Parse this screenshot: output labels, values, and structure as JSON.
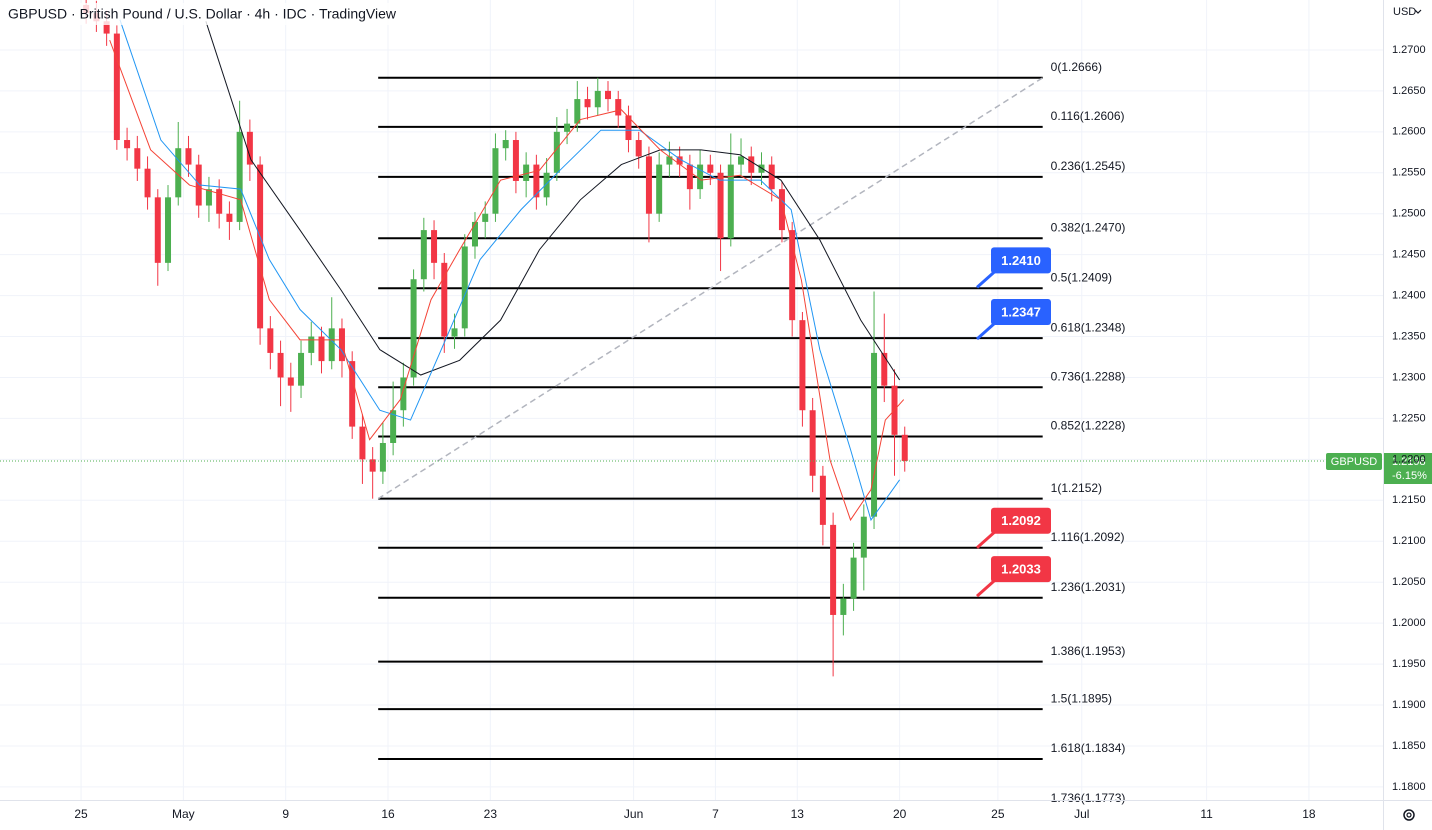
{
  "chart_data": {
    "type": "candlestick",
    "title": "GBPUSD · British Pound / U.S. Dollar · 4h · IDC · TradingView",
    "currency": "USD",
    "symbol": "GBPUSD",
    "last_price": 1.2198,
    "change": "-6.15%",
    "xlim": [
      -3.96,
      63.62
    ],
    "ylim": [
      1.1784,
      1.2761
    ],
    "grid": true,
    "xticks": [
      {
        "value": 0,
        "label": "25"
      },
      {
        "value": 5,
        "label": "May"
      },
      {
        "value": 10,
        "label": "9"
      },
      {
        "value": 15,
        "label": "16"
      },
      {
        "value": 20,
        "label": "23"
      },
      {
        "value": 27,
        "label": "Jun"
      },
      {
        "value": 31,
        "label": "7"
      },
      {
        "value": 35,
        "label": "13"
      },
      {
        "value": 40,
        "label": "20"
      },
      {
        "value": 44.8,
        "label": "25"
      },
      {
        "value": 48.9,
        "label": "Jul"
      },
      {
        "value": 55,
        "label": "11"
      },
      {
        "value": 60,
        "label": "18"
      }
    ],
    "yticks": [
      {
        "value": 1.27,
        "label": "1.2700"
      },
      {
        "value": 1.265,
        "label": "1.2650"
      },
      {
        "value": 1.26,
        "label": "1.2600"
      },
      {
        "value": 1.255,
        "label": "1.2550"
      },
      {
        "value": 1.25,
        "label": "1.2500"
      },
      {
        "value": 1.245,
        "label": "1.2450"
      },
      {
        "value": 1.24,
        "label": "1.2400"
      },
      {
        "value": 1.235,
        "label": "1.2350"
      },
      {
        "value": 1.23,
        "label": "1.2300"
      },
      {
        "value": 1.225,
        "label": "1.2250"
      },
      {
        "value": 1.22,
        "label": "1.2200"
      },
      {
        "value": 1.215,
        "label": "1.2150"
      },
      {
        "value": 1.21,
        "label": "1.2100"
      },
      {
        "value": 1.205,
        "label": "1.2050"
      },
      {
        "value": 1.2,
        "label": "1.2000"
      },
      {
        "value": 1.195,
        "label": "1.1950"
      },
      {
        "value": 1.19,
        "label": "1.1900"
      },
      {
        "value": 1.185,
        "label": "1.1850"
      },
      {
        "value": 1.18,
        "label": "1.1800"
      }
    ],
    "up_color": "#4caf50",
    "down_color": "#f23645",
    "x": [
      0.25,
      0.75,
      1.25,
      1.75,
      2.25,
      2.75,
      3.25,
      3.75,
      4.25,
      4.75,
      5.25,
      5.75,
      6.25,
      6.75,
      7.25,
      7.75,
      8.25,
      8.75,
      9.25,
      9.75,
      10.25,
      10.75,
      11.25,
      11.75,
      12.25,
      12.75,
      13.25,
      13.75,
      14.25,
      14.75,
      15.25,
      15.75,
      16.25,
      16.75,
      17.25,
      17.75,
      18.25,
      18.75,
      19.25,
      19.75,
      20.25,
      20.75,
      21.25,
      21.75,
      22.25,
      22.75,
      23.25,
      23.75,
      24.25,
      24.75,
      25.25,
      25.75,
      26.25,
      26.75,
      27.25,
      27.75,
      28.25,
      28.75,
      29.25,
      29.75,
      30.25,
      30.75,
      31.25,
      31.75,
      32.25,
      32.75,
      33.25,
      33.75,
      34.25,
      34.75,
      35.25,
      35.75,
      36.25,
      36.75,
      37.25,
      37.75,
      38.25,
      38.75,
      39.25,
      39.75,
      40.25
    ],
    "open": [
      1.2755,
      1.2745,
      1.2735,
      1.272,
      1.259,
      1.258,
      1.2555,
      1.252,
      1.244,
      1.252,
      1.258,
      1.256,
      1.251,
      1.253,
      1.25,
      1.249,
      1.26,
      1.256,
      1.236,
      1.233,
      1.23,
      1.229,
      1.233,
      1.235,
      1.232,
      1.236,
      1.232,
      1.224,
      1.22,
      1.2185,
      1.222,
      1.226,
      1.23,
      1.242,
      1.248,
      1.244,
      1.235,
      1.236,
      1.246,
      1.249,
      1.25,
      1.258,
      1.259,
      1.254,
      1.256,
      1.252,
      1.255,
      1.26,
      1.261,
      1.264,
      1.263,
      1.265,
      1.264,
      1.262,
      1.259,
      1.257,
      1.25,
      1.256,
      1.257,
      1.256,
      1.253,
      1.256,
      1.255,
      1.247,
      1.256,
      1.257,
      1.255,
      1.256,
      1.253,
      1.248,
      1.237,
      1.226,
      1.218,
      1.212,
      1.201,
      1.203,
      1.208,
      1.213,
      1.233,
      1.229,
      1.223
    ],
    "high": [
      1.2768,
      1.276,
      1.2748,
      1.273,
      1.2605,
      1.2595,
      1.257,
      1.253,
      1.2535,
      1.2612,
      1.2595,
      1.2572,
      1.2545,
      1.2542,
      1.2515,
      1.2638,
      1.2615,
      1.257,
      1.2375,
      1.2345,
      1.2318,
      1.2345,
      1.2368,
      1.2362,
      1.2398,
      1.2372,
      1.2332,
      1.2255,
      1.2215,
      1.2245,
      1.2295,
      1.2318,
      1.2432,
      1.2495,
      1.2492,
      1.2452,
      1.2378,
      1.2475,
      1.2502,
      1.2515,
      1.2598,
      1.2602,
      1.26,
      1.2575,
      1.2572,
      1.2568,
      1.2618,
      1.2628,
      1.2662,
      1.2655,
      1.2666,
      1.2662,
      1.265,
      1.2632,
      1.26,
      1.2582,
      1.2575,
      1.2588,
      1.2582,
      1.2572,
      1.2578,
      1.2572,
      1.256,
      1.2598,
      1.2592,
      1.2582,
      1.2575,
      1.257,
      1.254,
      1.249,
      1.238,
      1.2275,
      1.2192,
      1.2135,
      1.2048,
      1.2098,
      1.2145,
      1.2405,
      1.2378,
      1.231,
      1.224
    ],
    "low": [
      1.2732,
      1.2722,
      1.2705,
      1.2578,
      1.2565,
      1.254,
      1.2505,
      1.2412,
      1.243,
      1.251,
      1.2545,
      1.2495,
      1.249,
      1.2482,
      1.2468,
      1.248,
      1.254,
      1.234,
      1.231,
      1.2265,
      1.2258,
      1.2275,
      1.2315,
      1.2305,
      1.231,
      1.23,
      1.2225,
      1.217,
      1.2152,
      1.217,
      1.2205,
      1.224,
      1.229,
      1.2405,
      1.242,
      1.233,
      1.2335,
      1.235,
      1.2445,
      1.247,
      1.249,
      1.2565,
      1.2525,
      1.252,
      1.2505,
      1.251,
      1.254,
      1.2585,
      1.26,
      1.2615,
      1.262,
      1.2625,
      1.2605,
      1.2575,
      1.2555,
      1.2465,
      1.249,
      1.2545,
      1.2545,
      1.2505,
      1.2518,
      1.2535,
      1.243,
      1.246,
      1.2545,
      1.2535,
      1.2535,
      1.2515,
      1.2465,
      1.235,
      1.224,
      1.216,
      1.2095,
      1.1935,
      1.1985,
      1.2015,
      1.204,
      1.2115,
      1.227,
      1.218,
      1.2185
    ],
    "close": [
      1.2745,
      1.2735,
      1.272,
      1.259,
      1.258,
      1.2555,
      1.252,
      1.244,
      1.252,
      1.258,
      1.256,
      1.251,
      1.253,
      1.25,
      1.249,
      1.26,
      1.256,
      1.236,
      1.233,
      1.23,
      1.229,
      1.233,
      1.235,
      1.232,
      1.236,
      1.232,
      1.224,
      1.22,
      1.2185,
      1.222,
      1.226,
      1.23,
      1.242,
      1.248,
      1.244,
      1.235,
      1.236,
      1.246,
      1.249,
      1.25,
      1.258,
      1.259,
      1.254,
      1.256,
      1.252,
      1.255,
      1.26,
      1.261,
      1.264,
      1.263,
      1.265,
      1.264,
      1.262,
      1.259,
      1.257,
      1.25,
      1.256,
      1.257,
      1.256,
      1.253,
      1.256,
      1.255,
      1.247,
      1.256,
      1.257,
      1.255,
      1.256,
      1.253,
      1.248,
      1.237,
      1.226,
      1.218,
      1.212,
      1.201,
      1.203,
      1.208,
      1.213,
      1.233,
      1.229,
      1.223,
      1.2198
    ],
    "series": [
      {
        "color": "#131722",
        "x": [
          6.1,
          8.3,
          10.7,
          12.7,
          14.6,
          16.6,
          18.5,
          20.5,
          22.4,
          24.4,
          26.4,
          28.3,
          30.3,
          32.2,
          34.2,
          36.1,
          38.1,
          40.0
        ],
        "values": [
          1.2735,
          1.2566,
          1.248,
          1.2407,
          1.2334,
          1.2303,
          1.2321,
          1.237,
          1.2456,
          1.2517,
          1.256,
          1.2578,
          1.2578,
          1.2572,
          1.2541,
          1.2468,
          1.237,
          1.2297
        ]
      },
      {
        "color": "#2196f3",
        "x": [
          1.9,
          3.9,
          5.8,
          7.8,
          9.2,
          10.7,
          12.7,
          14.6,
          16.1,
          17.6,
          19.5,
          21.5,
          23.4,
          25.4,
          27.3,
          29.3,
          31.2,
          33.2,
          34.7,
          36.1,
          37.6,
          38.6,
          40.0
        ],
        "values": [
          1.2737,
          1.259,
          1.2535,
          1.253,
          1.2444,
          1.2383,
          1.2334,
          1.226,
          1.2248,
          1.2334,
          1.2444,
          1.2505,
          1.2553,
          1.2602,
          1.2602,
          1.2566,
          1.2541,
          1.2541,
          1.2505,
          1.2334,
          1.2212,
          1.2126,
          1.2175
        ]
      },
      {
        "color": "#f44336",
        "x": [
          1.4,
          3.4,
          5.3,
          7.8,
          9.2,
          10.7,
          12.7,
          14.1,
          15.6,
          17.1,
          18.5,
          20.5,
          22.4,
          24.4,
          26.4,
          28.3,
          30.3,
          32.2,
          34.2,
          35.2,
          36.6,
          37.6,
          38.6,
          39.3,
          40.2
        ],
        "values": [
          1.2712,
          1.2578,
          1.2535,
          1.2517,
          1.2395,
          1.2346,
          1.2346,
          1.2224,
          1.2273,
          1.2395,
          1.2456,
          1.2541,
          1.2553,
          1.2615,
          1.2627,
          1.2578,
          1.2541,
          1.2547,
          1.2517,
          1.2419,
          1.2199,
          1.2126,
          1.2163,
          1.2248,
          1.2273
        ]
      }
    ],
    "trendline": {
      "color": "#b2b5be",
      "x": [
        14.52,
        46.99
      ],
      "values": [
        1.2152,
        1.2666
      ]
    },
    "fib_levels": [
      {
        "value": 1.2666,
        "label": "0(1.2666)"
      },
      {
        "value": 1.2606,
        "label": "0.116(1.2606)"
      },
      {
        "value": 1.2545,
        "label": "0.236(1.2545)"
      },
      {
        "value": 1.247,
        "label": "0.382(1.2470)"
      },
      {
        "value": 1.2409,
        "label": "0.5(1.2409)"
      },
      {
        "value": 1.2348,
        "label": "0.618(1.2348)"
      },
      {
        "value": 1.2288,
        "label": "0.736(1.2288)"
      },
      {
        "value": 1.2228,
        "label": "0.852(1.2228)"
      },
      {
        "value": 1.2152,
        "label": "1(1.2152)"
      },
      {
        "value": 1.2092,
        "label": "1.116(1.2092)"
      },
      {
        "value": 1.2031,
        "label": "1.236(1.2031)"
      },
      {
        "value": 1.1953,
        "label": "1.386(1.1953)"
      },
      {
        "value": 1.1895,
        "label": "1.5(1.1895)"
      },
      {
        "value": 1.1834,
        "label": "1.618(1.1834)"
      },
      {
        "value": 1.1773,
        "label": "1.736(1.1773)"
      }
    ],
    "callouts": [
      {
        "value": 1.241,
        "label": "1.2410",
        "color": "#2962ff"
      },
      {
        "value": 1.2347,
        "label": "1.2347",
        "color": "#2962ff"
      },
      {
        "value": 1.2092,
        "label": "1.2092",
        "color": "#f23645"
      },
      {
        "value": 1.2033,
        "label": "1.2033",
        "color": "#f23645"
      }
    ]
  }
}
